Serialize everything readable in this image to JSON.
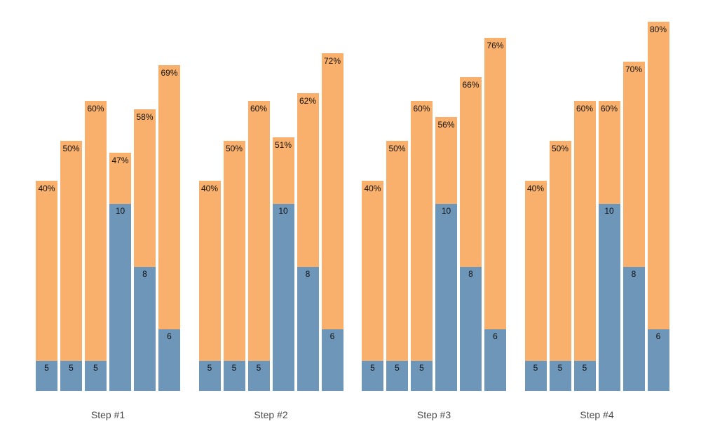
{
  "chart_data": {
    "type": "bar",
    "subtype": "grouped-overlay-stacked",
    "title": "",
    "xlabel": "",
    "ylabel": "",
    "axes_visible": false,
    "grid": false,
    "legend": "none",
    "background_color": "#ffffff",
    "colors": {
      "percent_bar": "#F9B06C",
      "value_bar": "#6D96B9",
      "bar_label_text": "#111111",
      "group_label_text": "#4a4a4a"
    },
    "categories": [
      "Step #1",
      "Step #2",
      "Step #3",
      "Step #4"
    ],
    "groups": [
      {
        "label": "Step #1",
        "bars": [
          {
            "value": 5,
            "value_label": "5",
            "percent": 40,
            "pct_label": "40%"
          },
          {
            "value": 5,
            "value_label": "5",
            "percent": 50,
            "pct_label": "50%"
          },
          {
            "value": 5,
            "value_label": "5",
            "percent": 60,
            "pct_label": "60%"
          },
          {
            "value": 10,
            "value_label": "10",
            "percent": 47,
            "pct_label": "47%"
          },
          {
            "value": 8,
            "value_label": "8",
            "percent": 58,
            "pct_label": "58%"
          },
          {
            "value": 6,
            "value_label": "6",
            "percent": 69,
            "pct_label": "69%"
          }
        ]
      },
      {
        "label": "Step #2",
        "bars": [
          {
            "value": 5,
            "value_label": "5",
            "percent": 40,
            "pct_label": "40%"
          },
          {
            "value": 5,
            "value_label": "5",
            "percent": 50,
            "pct_label": "50%"
          },
          {
            "value": 5,
            "value_label": "5",
            "percent": 60,
            "pct_label": "60%"
          },
          {
            "value": 10,
            "value_label": "10",
            "percent": 51,
            "pct_label": "51%"
          },
          {
            "value": 8,
            "value_label": "8",
            "percent": 62,
            "pct_label": "62%"
          },
          {
            "value": 6,
            "value_label": "6",
            "percent": 72,
            "pct_label": "72%"
          }
        ]
      },
      {
        "label": "Step #3",
        "bars": [
          {
            "value": 5,
            "value_label": "5",
            "percent": 40,
            "pct_label": "40%"
          },
          {
            "value": 5,
            "value_label": "5",
            "percent": 50,
            "pct_label": "50%"
          },
          {
            "value": 5,
            "value_label": "5",
            "percent": 60,
            "pct_label": "60%"
          },
          {
            "value": 10,
            "value_label": "10",
            "percent": 56,
            "pct_label": "56%"
          },
          {
            "value": 8,
            "value_label": "8",
            "percent": 66,
            "pct_label": "66%"
          },
          {
            "value": 6,
            "value_label": "6",
            "percent": 76,
            "pct_label": "76%"
          }
        ]
      },
      {
        "label": "Step #4",
        "bars": [
          {
            "value": 5,
            "value_label": "5",
            "percent": 40,
            "pct_label": "40%"
          },
          {
            "value": 5,
            "value_label": "5",
            "percent": 50,
            "pct_label": "50%"
          },
          {
            "value": 5,
            "value_label": "5",
            "percent": 60,
            "pct_label": "60%"
          },
          {
            "value": 10,
            "value_label": "10",
            "percent": 60,
            "pct_label": "60%"
          },
          {
            "value": 8,
            "value_label": "8",
            "percent": 70,
            "pct_label": "70%"
          },
          {
            "value": 6,
            "value_label": "6",
            "percent": 80,
            "pct_label": "80%"
          }
        ]
      }
    ]
  }
}
